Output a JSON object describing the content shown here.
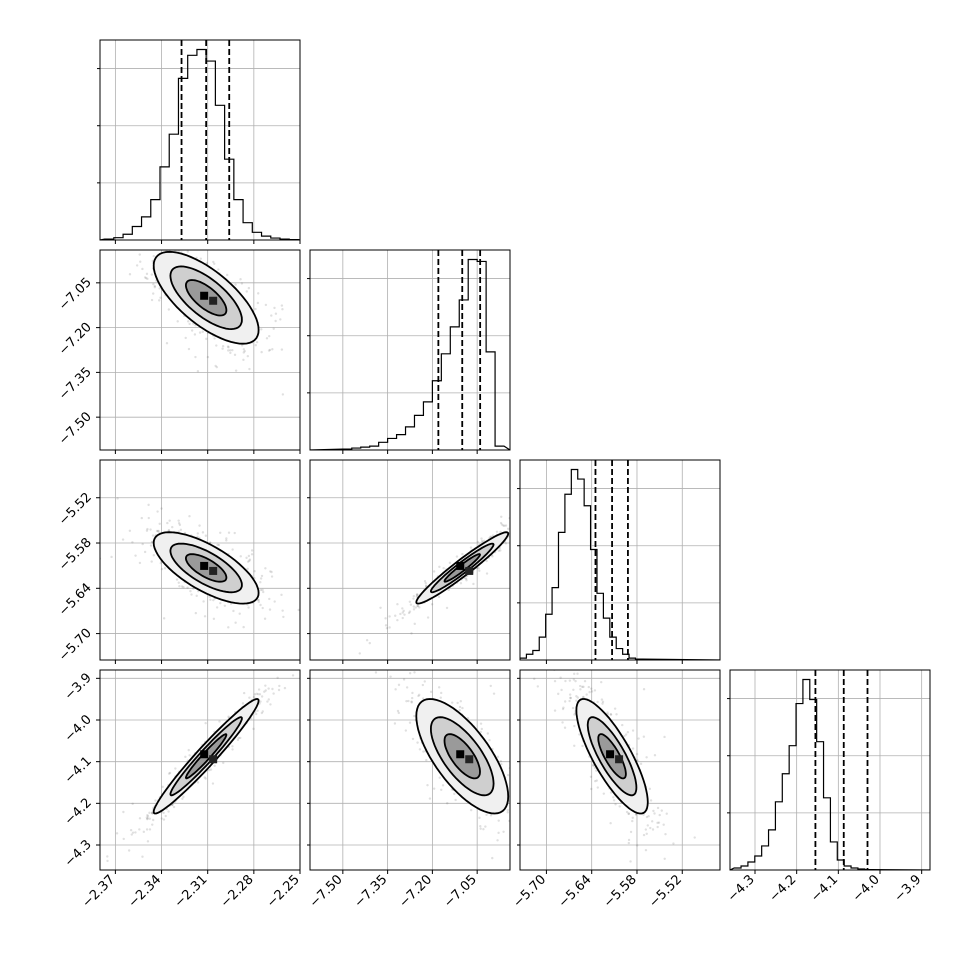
{
  "chart_data": {
    "type": "corner",
    "parameters": [
      {
        "range": [
          -2.38,
          -2.25
        ],
        "ticks": [
          -2.37,
          -2.34,
          -2.31,
          -2.28,
          -2.25
        ],
        "tick_labels": [
          "−2.37",
          "−2.34",
          "−2.31",
          "−2.28",
          "−2.25"
        ],
        "quantiles": [
          -2.327,
          -2.311,
          -2.296
        ],
        "hist": {
          "start": -2.377,
          "step": 0.006,
          "counts": [
            0.005,
            0.012,
            0.03,
            0.07,
            0.12,
            0.21,
            0.38,
            0.55,
            0.84,
            0.96,
            0.99,
            0.93,
            0.7,
            0.42,
            0.21,
            0.09,
            0.04,
            0.02,
            0.01,
            0.005,
            0.002
          ]
        }
      },
      {
        "range": [
          -7.61,
          -6.94
        ],
        "ticks": [
          -7.5,
          -7.35,
          -7.2,
          -7.05
        ],
        "tick_labels": [
          "−7.50",
          "−7.35",
          "−7.20",
          "−7.05"
        ],
        "quantiles": [
          -7.18,
          -7.1,
          -7.04
        ],
        "hist": {
          "start": -7.5,
          "step": 0.03,
          "counts": [
            0.005,
            0.01,
            0.015,
            0.02,
            0.04,
            0.06,
            0.08,
            0.12,
            0.18,
            0.25,
            0.36,
            0.5,
            0.64,
            0.78,
            0.99,
            0.98,
            0.51,
            0.02
          ]
        }
      },
      {
        "range": [
          -5.735,
          -5.47
        ],
        "ticks": [
          -5.7,
          -5.64,
          -5.58,
          -5.52
        ],
        "tick_labels": [
          "−5.70",
          "−5.64",
          "−5.58",
          "−5.52"
        ],
        "quantiles": [
          -5.635,
          -5.613,
          -5.592
        ],
        "hist": {
          "start": -5.735,
          "step": 0.0085,
          "counts": [
            0.01,
            0.03,
            0.05,
            0.12,
            0.24,
            0.38,
            0.67,
            0.87,
            1.0,
            0.95,
            0.81,
            0.58,
            0.35,
            0.22,
            0.12,
            0.06,
            0.03,
            0.01,
            0.005
          ]
        }
      },
      {
        "range": [
          -4.36,
          -3.88
        ],
        "ticks": [
          -4.3,
          -4.2,
          -4.1,
          -4.0,
          -3.9
        ],
        "tick_labels": [
          "−4.3",
          "−4.2",
          "−4.1",
          "−4.0",
          "−3.9"
        ],
        "quantiles": [
          -4.155,
          -4.087,
          -4.03
        ],
        "hist": {
          "start": -4.35,
          "step": 0.0165,
          "counts": [
            0.01,
            0.02,
            0.04,
            0.07,
            0.12,
            0.2,
            0.34,
            0.48,
            0.62,
            0.83,
            0.95,
            0.85,
            0.64,
            0.36,
            0.14,
            0.05,
            0.02,
            0.01,
            0.005,
            0.002
          ]
        }
      }
    ],
    "correlations": [
      [
        1,
        -0.7,
        -0.7,
        0.97
      ],
      [
        -0.7,
        1,
        0.96,
        -0.7
      ],
      [
        -0.7,
        0.96,
        1,
        -0.8
      ],
      [
        0.97,
        -0.7,
        -0.8,
        1
      ]
    ],
    "quantile_style": "dashed",
    "grid": true
  }
}
